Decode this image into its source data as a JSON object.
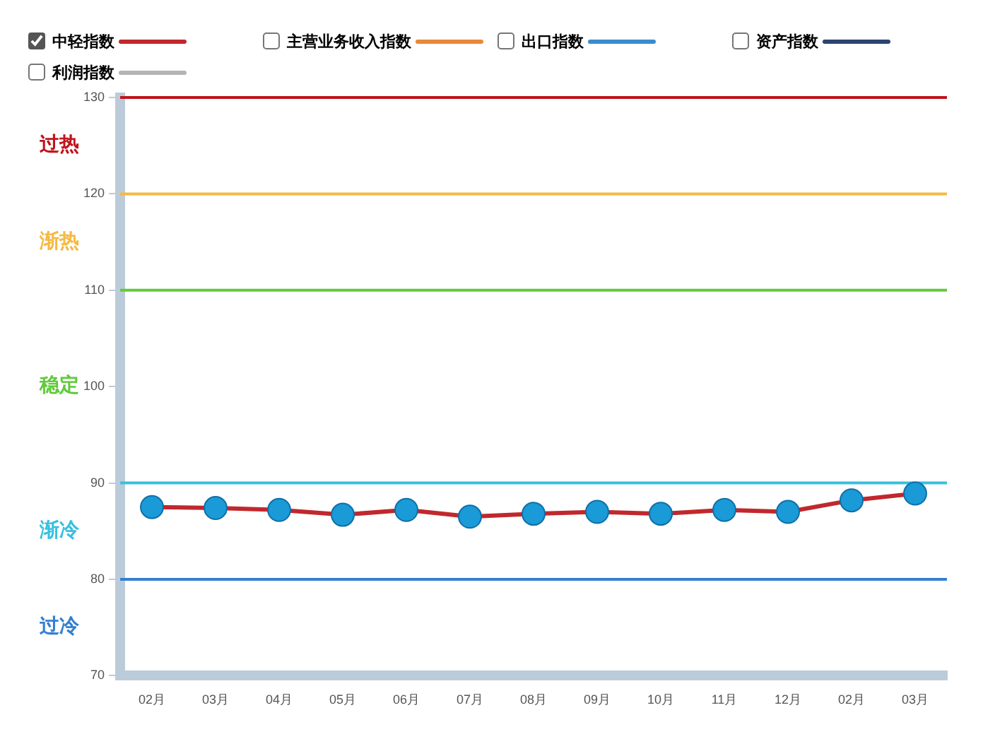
{
  "chart_data": {
    "type": "line",
    "categories": [
      "02月",
      "03月",
      "04月",
      "05月",
      "06月",
      "07月",
      "08月",
      "09月",
      "10月",
      "11月",
      "12月",
      "02月",
      "03月"
    ],
    "series": [
      {
        "name": "中轻指数",
        "color": "#c0282d",
        "values": [
          87.5,
          87.4,
          87.2,
          86.7,
          87.2,
          86.5,
          86.8,
          87.0,
          86.8,
          87.2,
          87.0,
          88.2,
          88.9
        ]
      },
      {
        "name": "主营业务收入指数",
        "color": "#e8883a",
        "values": [
          null,
          null,
          null,
          null,
          null,
          null,
          null,
          null,
          null,
          null,
          null,
          null,
          null
        ]
      },
      {
        "name": "出口指数",
        "color": "#3a8ccc",
        "values": [
          null,
          null,
          null,
          null,
          null,
          null,
          null,
          null,
          null,
          null,
          null,
          null,
          null
        ]
      },
      {
        "name": "资产指数",
        "color": "#2c4470",
        "values": [
          null,
          null,
          null,
          null,
          null,
          null,
          null,
          null,
          null,
          null,
          null,
          null,
          null
        ]
      },
      {
        "name": "利润指数",
        "color": "#b4b4b4",
        "values": [
          null,
          null,
          null,
          null,
          null,
          null,
          null,
          null,
          null,
          null,
          null,
          null,
          null
        ]
      }
    ],
    "ylim": [
      70,
      130
    ],
    "yticks": [
      70,
      80,
      90,
      100,
      110,
      120,
      130
    ],
    "ref_lines": [
      {
        "axis": "y",
        "value": 130,
        "label": "过热",
        "color": "#c0141c"
      },
      {
        "axis": "y",
        "value": 120,
        "label": "渐热",
        "color": "#f5b942"
      },
      {
        "axis": "y",
        "value": 110,
        "label": "稳定",
        "color": "#5fcb3c"
      },
      {
        "axis": "y",
        "value": 90,
        "label": "渐冷",
        "color": "#38c0e0"
      },
      {
        "axis": "y",
        "value": 80,
        "label": "过冷",
        "color": "#3380d0"
      }
    ],
    "marker": "circle",
    "legend": "top left"
  }
}
